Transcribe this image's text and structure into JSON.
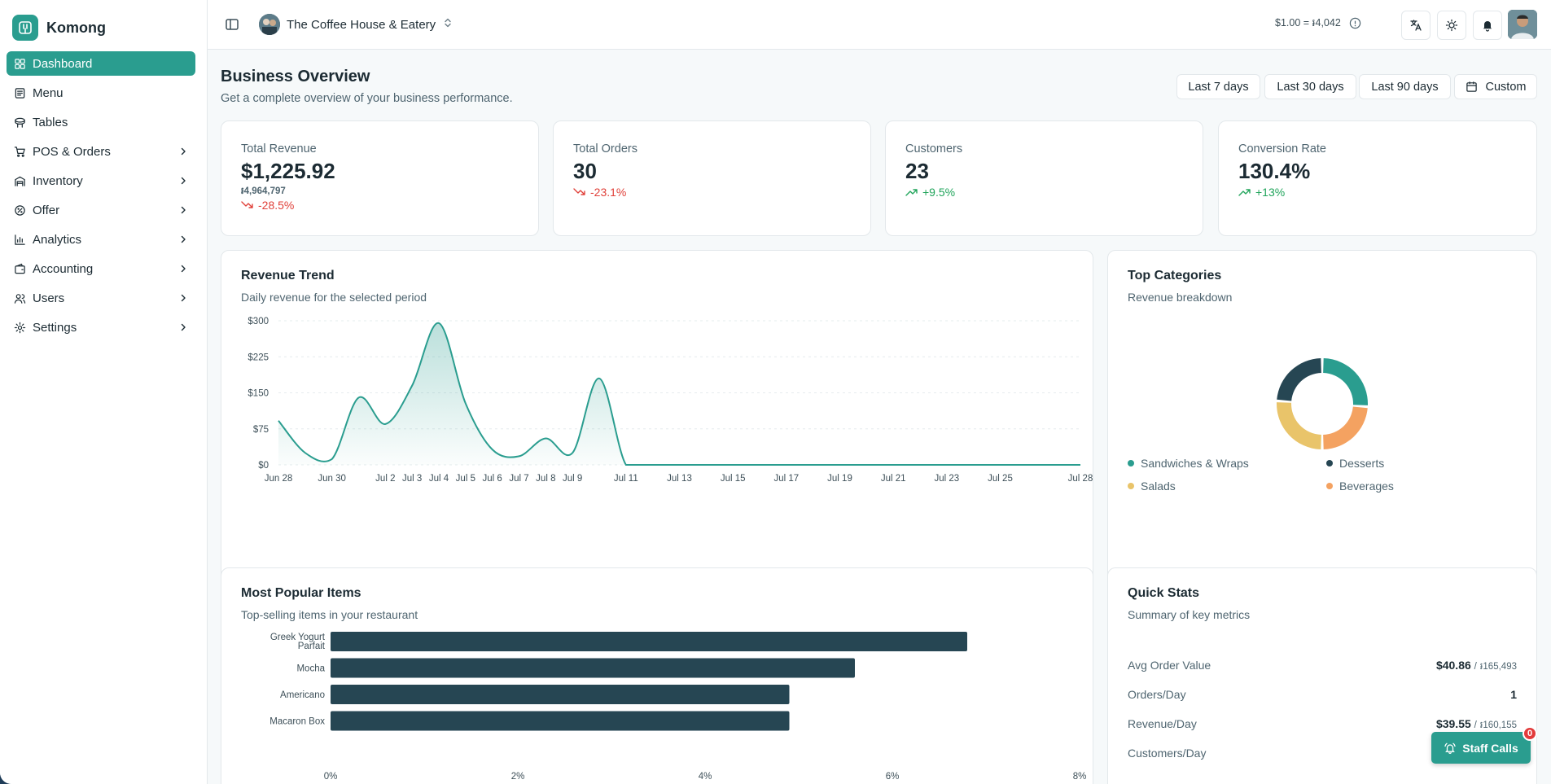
{
  "app": {
    "name": "Komong"
  },
  "sidebar": {
    "items": [
      {
        "label": "Dashboard",
        "icon": "dashboard-icon",
        "active": true,
        "chevron": false
      },
      {
        "label": "Menu",
        "icon": "menu-book-icon",
        "chevron": false
      },
      {
        "label": "Tables",
        "icon": "table-icon",
        "chevron": false
      },
      {
        "label": "POS & Orders",
        "icon": "cart-icon",
        "chevron": true
      },
      {
        "label": "Inventory",
        "icon": "warehouse-icon",
        "chevron": true
      },
      {
        "label": "Offer",
        "icon": "badge-percent-icon",
        "chevron": true
      },
      {
        "label": "Analytics",
        "icon": "bar-chart-icon",
        "chevron": true
      },
      {
        "label": "Accounting",
        "icon": "wallet-icon",
        "chevron": true
      },
      {
        "label": "Users",
        "icon": "users-icon",
        "chevron": true
      },
      {
        "label": "Settings",
        "icon": "gear-icon",
        "chevron": true
      }
    ]
  },
  "topbar": {
    "store_name": "The Coffee House & Eatery",
    "exchange_rate": "$1.00 = ៛4,042"
  },
  "page": {
    "title": "Business Overview",
    "subtitle": "Get a complete overview of your business performance."
  },
  "ranges": {
    "r7": "Last 7 days",
    "r30": "Last 30 days",
    "r90": "Last 90 days",
    "custom": "Custom"
  },
  "kpis": [
    {
      "label": "Total Revenue",
      "value": "$1,225.92",
      "sub": "៛4,964,797",
      "change": "-28.5%",
      "trend": "down"
    },
    {
      "label": "Total Orders",
      "value": "30",
      "change": "-23.1%",
      "trend": "down"
    },
    {
      "label": "Customers",
      "value": "23",
      "change": "+9.5%",
      "trend": "up"
    },
    {
      "label": "Conversion Rate",
      "value": "130.4%",
      "change": "+13%",
      "trend": "up"
    }
  ],
  "revenue_card": {
    "title": "Revenue Trend",
    "subtitle": "Daily revenue for the selected period"
  },
  "categories_card": {
    "title": "Top Categories",
    "subtitle": "Revenue breakdown"
  },
  "popular_card": {
    "title": "Most Popular Items",
    "subtitle": "Top-selling items in your restaurant"
  },
  "quick_stats": {
    "title": "Quick Stats",
    "subtitle": "Summary of key metrics",
    "rows": [
      {
        "label": "Avg Order Value",
        "usd": "$40.86",
        "khr": "៛165,493"
      },
      {
        "label": "Orders/Day",
        "usd": "1",
        "khr": ""
      },
      {
        "label": "Revenue/Day",
        "usd": "$39.55",
        "khr": "៛160,155"
      },
      {
        "label": "Customers/Day",
        "usd": "",
        "khr": ""
      }
    ]
  },
  "staff_calls": {
    "label": "Staff Calls",
    "count": "0"
  },
  "colors": {
    "accent": "#2a9d8f",
    "dark": "#264653",
    "sand": "#e9c46a",
    "orange": "#f4a261",
    "down": "#e0413a",
    "up": "#22a55c"
  },
  "chart_data": [
    {
      "type": "area",
      "title": "Revenue Trend",
      "x_tick_labels": [
        "Jun 28",
        "Jun 30",
        "Jul 2",
        "Jul 3",
        "Jul 4",
        "Jul 5",
        "Jul 6",
        "Jul 7",
        "Jul 8",
        "Jul 9",
        "Jul 11",
        "Jul 13",
        "Jul 15",
        "Jul 17",
        "Jul 19",
        "Jul 21",
        "Jul 23",
        "Jul 25",
        "Jul 28"
      ],
      "y_tick_labels": [
        "$0",
        "$75",
        "$150",
        "$225",
        "$300"
      ],
      "ylim": [
        0,
        300
      ],
      "x": [
        "Jun 28",
        "Jun 29",
        "Jun 30",
        "Jul 1",
        "Jul 2",
        "Jul 3",
        "Jul 4",
        "Jul 5",
        "Jul 6",
        "Jul 7",
        "Jul 8",
        "Jul 9",
        "Jul 10",
        "Jul 11",
        "Jul 12",
        "Jul 13",
        "Jul 14",
        "Jul 15",
        "Jul 16",
        "Jul 17",
        "Jul 18",
        "Jul 19",
        "Jul 20",
        "Jul 21",
        "Jul 22",
        "Jul 23",
        "Jul 24",
        "Jul 25",
        "Jul 26",
        "Jul 27",
        "Jul 28"
      ],
      "values": [
        92,
        25,
        12,
        140,
        85,
        165,
        295,
        128,
        32,
        18,
        55,
        25,
        180,
        0,
        0,
        0,
        0,
        0,
        0,
        0,
        0,
        0,
        0,
        0,
        0,
        0,
        0,
        0,
        0,
        0,
        0
      ],
      "grid": true
    },
    {
      "type": "pie",
      "title": "Top Categories",
      "categories": [
        "Sandwiches & Wraps",
        "Desserts",
        "Salads",
        "Beverages"
      ],
      "values": [
        26,
        24,
        26,
        24
      ],
      "colors": [
        "#2a9d8f",
        "#264653",
        "#e9c46a",
        "#f4a261"
      ]
    },
    {
      "type": "bar",
      "title": "Most Popular Items",
      "orientation": "horizontal",
      "categories": [
        "Greek Yogurt Parfait",
        "Mocha",
        "Americano",
        "Macaron Box"
      ],
      "values": [
        6.8,
        5.6,
        4.9,
        4.9
      ],
      "x_tick_labels": [
        "0%",
        "2%",
        "4%",
        "6%",
        "8%"
      ],
      "xlim": [
        0,
        8
      ]
    }
  ]
}
